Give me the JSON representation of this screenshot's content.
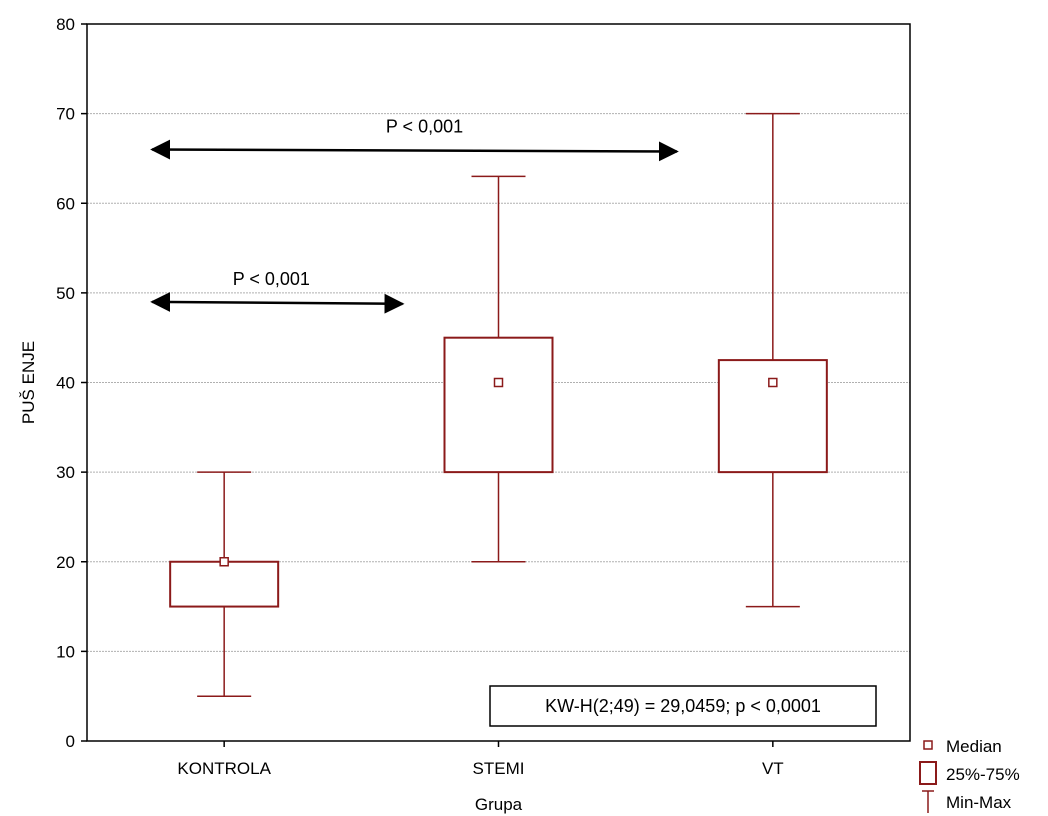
{
  "chart_data": {
    "type": "box",
    "xlabel": "Grupa",
    "ylabel": "PUŠ ENJE",
    "ylim": [
      0,
      80
    ],
    "yticks": [
      0,
      10,
      20,
      30,
      40,
      50,
      60,
      70,
      80
    ],
    "grid": true,
    "categories": [
      "KONTROLA",
      "STEMI",
      "VT"
    ],
    "boxes": [
      {
        "category": "KONTROLA",
        "min": 5,
        "q1": 15,
        "median": 20,
        "q3": 20,
        "max": 30
      },
      {
        "category": "STEMI",
        "min": 20,
        "q1": 30,
        "median": 40,
        "q3": 45,
        "max": 63
      },
      {
        "category": "VT",
        "min": 15,
        "q1": 30,
        "median": 40,
        "q3": 42.5,
        "max": 70
      }
    ],
    "annotations": [
      {
        "text": "P < 0,001",
        "from": "KONTROLA",
        "to": "VT",
        "y": 66
      },
      {
        "text": "P < 0,001",
        "from": "KONTROLA",
        "to": "STEMI",
        "y": 49
      }
    ],
    "test_label": "KW-H(2;49) = 29,0459; p < 0,0001",
    "legend": {
      "placement": "bottom-right",
      "items": [
        {
          "symbol": "median",
          "label": "Median"
        },
        {
          "symbol": "box",
          "label": "25%-75%"
        },
        {
          "symbol": "whisker",
          "label": "Min-Max"
        }
      ]
    },
    "colors": {
      "box": "#8b1a1a",
      "grid": "#b0b0b0",
      "arrow": "#000000"
    }
  }
}
